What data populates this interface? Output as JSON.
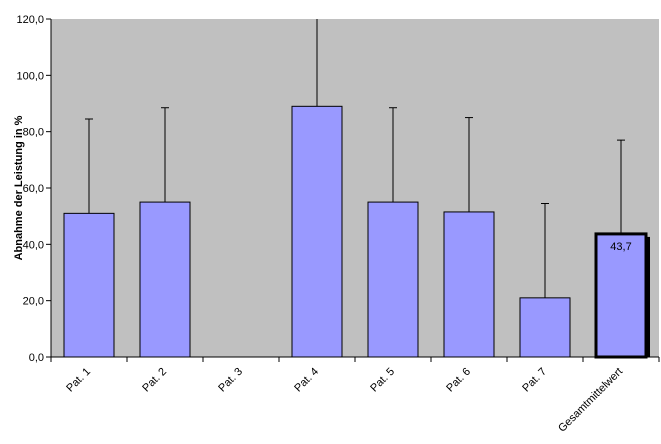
{
  "chart_data": {
    "type": "bar",
    "title": "",
    "xlabel": "",
    "ylabel": "Abnahme der Leistung in %",
    "ylim": [
      0,
      120
    ],
    "yticks": [
      "0,0",
      "20,0",
      "40,0",
      "60,0",
      "80,0",
      "100,0",
      "120,0"
    ],
    "categories": [
      "Pat. 1",
      "Pat. 2",
      "Pat. 3",
      "Pat. 4",
      "Pat. 5",
      "Pat. 6",
      "Pat. 7",
      "Gesamtmittelwert"
    ],
    "values": [
      51.0,
      55.0,
      null,
      89.0,
      55.0,
      51.5,
      21.0,
      43.7
    ],
    "error_upper": [
      84.5,
      88.5,
      null,
      120.0,
      88.5,
      85.0,
      54.5,
      77.0
    ],
    "data_labels": [
      "",
      "",
      "",
      "",
      "",
      "",
      "",
      "43,7"
    ],
    "highlight_index": 7,
    "grid": false,
    "legend": "none",
    "colors": {
      "plot_background": "#c0c0c0",
      "bar_fill": "#9999ff",
      "bar_stroke": "#000000",
      "error_bar": "#000000",
      "axis": "#000000",
      "text": "#000000"
    }
  }
}
